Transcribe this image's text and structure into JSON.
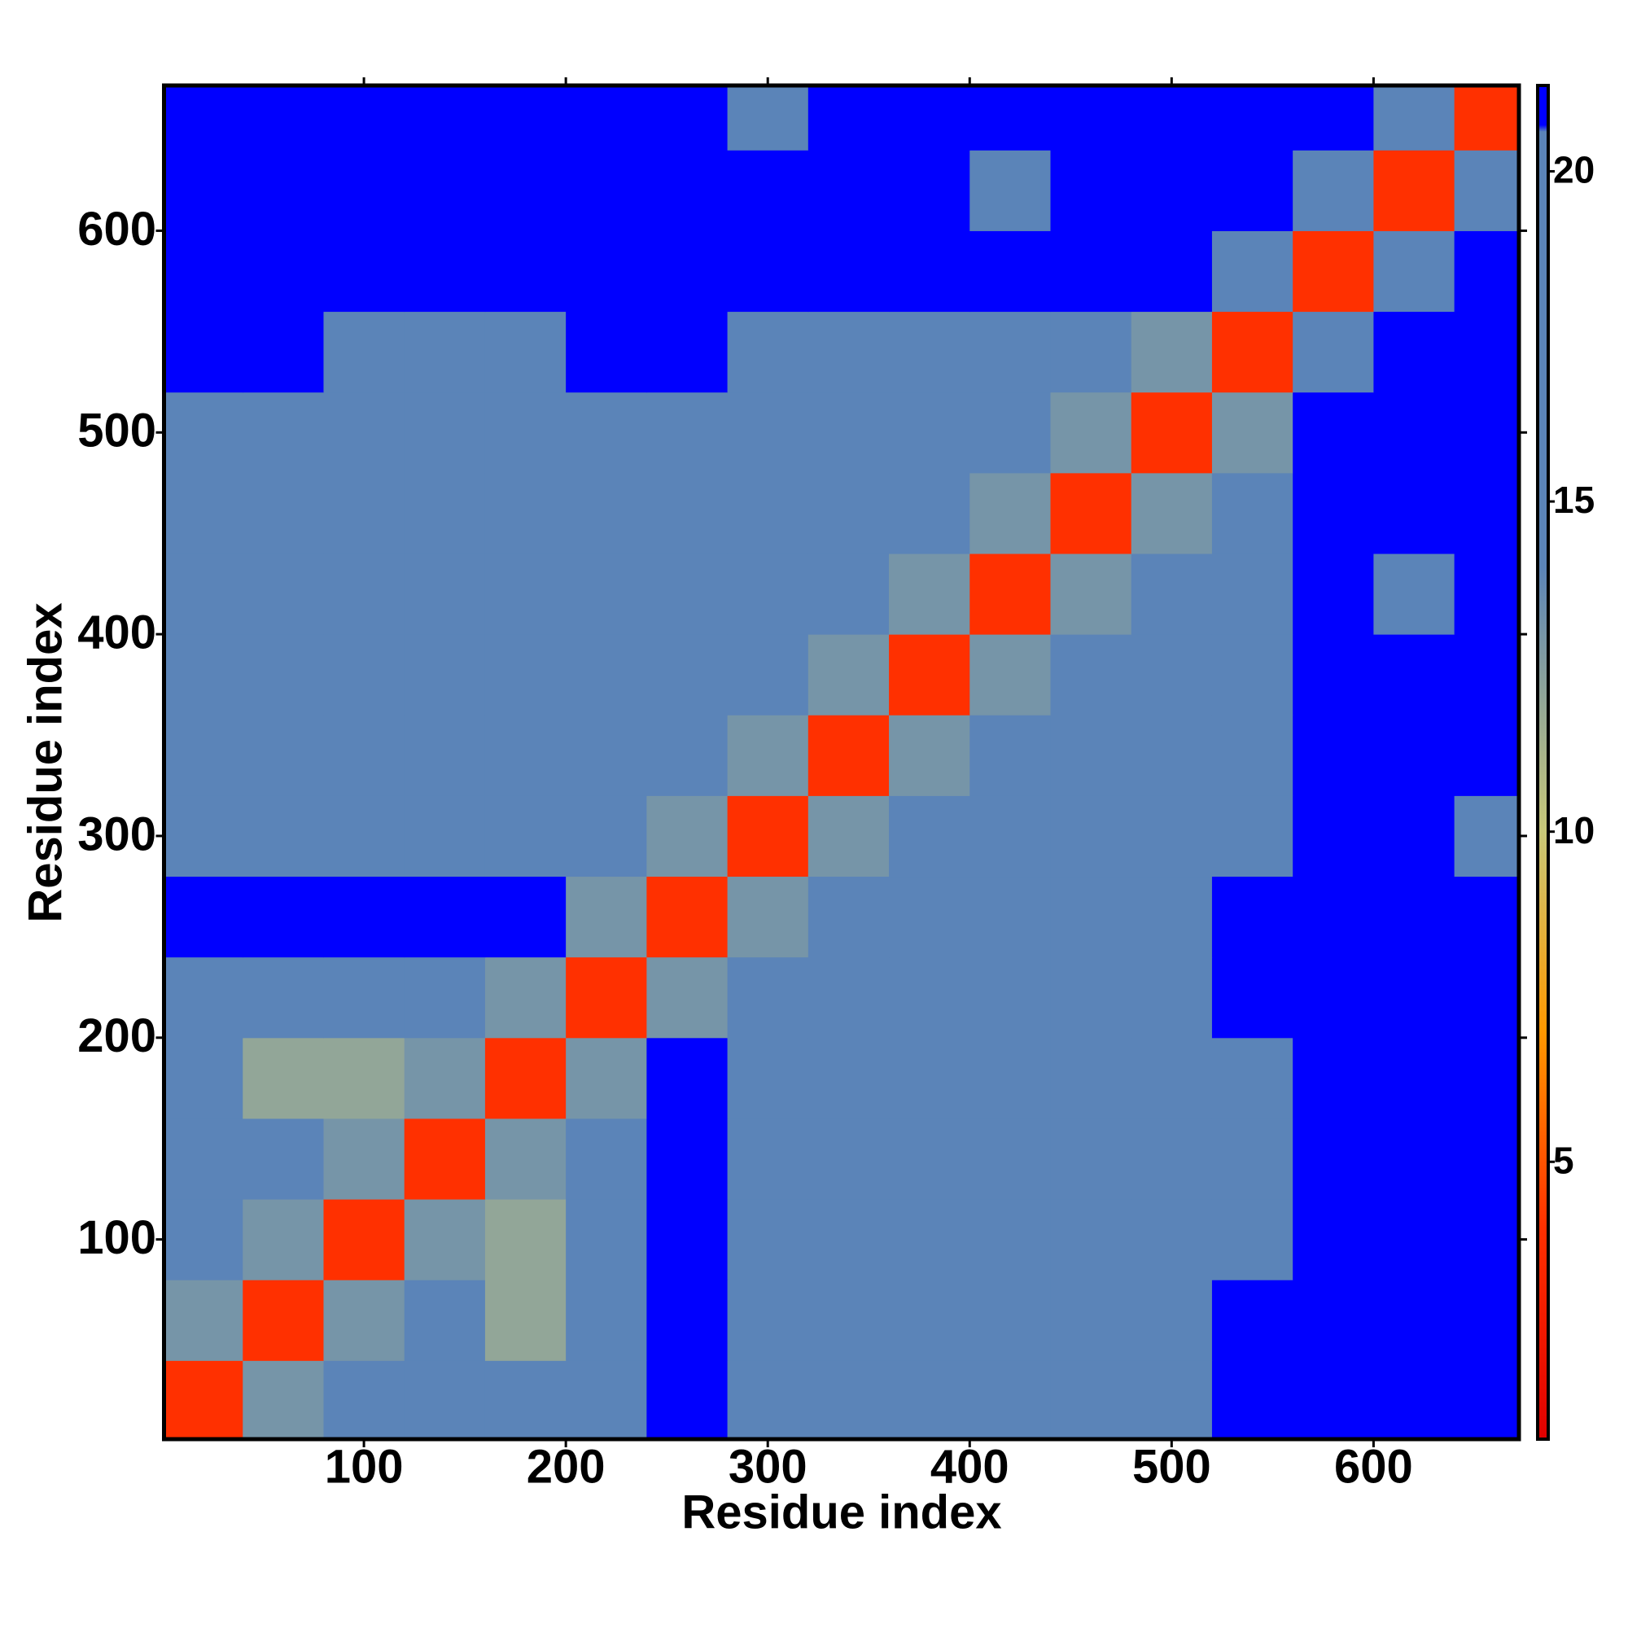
{
  "chart_data": {
    "type": "heatmap",
    "xlabel": "Residue index",
    "ylabel": "Residue index",
    "xlim": [
      1,
      672
    ],
    "ylim": [
      1,
      672
    ],
    "xticks": [
      100,
      200,
      300,
      400,
      500,
      600
    ],
    "yticks": [
      100,
      200,
      300,
      400,
      500,
      600
    ],
    "bins": [
      0,
      40,
      80,
      120,
      160,
      200,
      240,
      280,
      320,
      360,
      400,
      440,
      480,
      520,
      560,
      600,
      640,
      680
    ],
    "z": [
      [
        4,
        13,
        16,
        16,
        16,
        16,
        21,
        17,
        17,
        17,
        17,
        17,
        17,
        21,
        21,
        21,
        21
      ],
      [
        13,
        4,
        13,
        16,
        12,
        16,
        21,
        16,
        16,
        16,
        16,
        16,
        16,
        21,
        21,
        21,
        21
      ],
      [
        16,
        13,
        4,
        13,
        12,
        16,
        21,
        16,
        16,
        16,
        16,
        16,
        16,
        17,
        21,
        21,
        21
      ],
      [
        16,
        16,
        13,
        4,
        13,
        16,
        21,
        16,
        16,
        16,
        16,
        16,
        16,
        17,
        21,
        21,
        21
      ],
      [
        16,
        12,
        12,
        13,
        4,
        13,
        21,
        16,
        16,
        16,
        16,
        16,
        16,
        18,
        21,
        21,
        21
      ],
      [
        16,
        16,
        16,
        16,
        13,
        4,
        13,
        16,
        16,
        16,
        16,
        16,
        16,
        21,
        21,
        21,
        21
      ],
      [
        21,
        21,
        21,
        21,
        21,
        13,
        4,
        13,
        19,
        19,
        20,
        20,
        20,
        21,
        21,
        21,
        21
      ],
      [
        17,
        16,
        16,
        16,
        16,
        16,
        13,
        4,
        13,
        16,
        16,
        16,
        16,
        18,
        21,
        21,
        18
      ],
      [
        17,
        16,
        16,
        16,
        16,
        16,
        19,
        13,
        4,
        13,
        16,
        16,
        16,
        18,
        21,
        21,
        21
      ],
      [
        17,
        16,
        16,
        16,
        16,
        16,
        19,
        16,
        13,
        4,
        13,
        16,
        16,
        17,
        21,
        21,
        21
      ],
      [
        17,
        16,
        16,
        16,
        16,
        16,
        20,
        16,
        16,
        13,
        4,
        13,
        16,
        16,
        21,
        18,
        21
      ],
      [
        17,
        16,
        16,
        16,
        16,
        16,
        20,
        16,
        16,
        16,
        13,
        4,
        13,
        14,
        21,
        21,
        21
      ],
      [
        17,
        16,
        16,
        16,
        16,
        16,
        20,
        16,
        16,
        16,
        16,
        13,
        4,
        13,
        21,
        21,
        21
      ],
      [
        21,
        21,
        17,
        17,
        18,
        21,
        21,
        18,
        18,
        17,
        16,
        14,
        13,
        4,
        17,
        21,
        21
      ],
      [
        21,
        21,
        21,
        21,
        21,
        21,
        21,
        21,
        21,
        21,
        21,
        21,
        21,
        17,
        4,
        19,
        21
      ],
      [
        21,
        21,
        21,
        21,
        21,
        21,
        21,
        21,
        21,
        21,
        18,
        21,
        21,
        21,
        19,
        4,
        19
      ],
      [
        21,
        21,
        21,
        21,
        21,
        21,
        21,
        18,
        21,
        21,
        21,
        21,
        21,
        21,
        21,
        19,
        4
      ]
    ],
    "colorscale": [
      {
        "value": 0.8,
        "color": "#e00000"
      },
      {
        "value": 4,
        "color": "#ff3000"
      },
      {
        "value": 7,
        "color": "#ff9900"
      },
      {
        "value": 10,
        "color": "#c8c878"
      },
      {
        "value": 14,
        "color": "#5b84b8"
      },
      {
        "value": 20.6,
        "color": "#5b84b8"
      },
      {
        "value": 20.7,
        "color": "#0000ff"
      },
      {
        "value": 21.3,
        "color": "#0000ff"
      }
    ],
    "colorbar_lim": [
      0.8,
      21.3
    ],
    "colorbar_ticks": [
      5,
      10,
      15,
      20
    ]
  }
}
